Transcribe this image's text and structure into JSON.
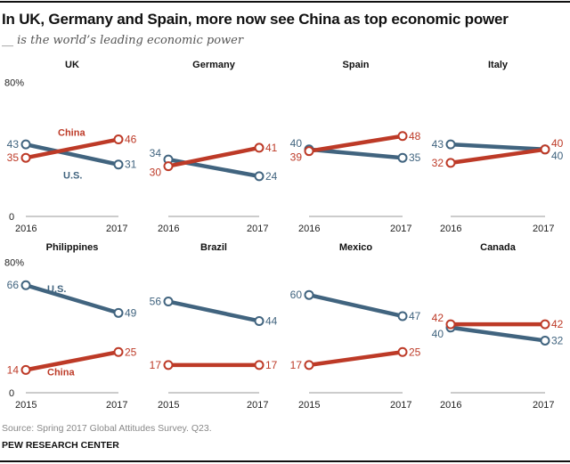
{
  "header": {
    "title": "In UK, Germany and Spain, more now see China as top economic power",
    "subtitle": "__ is the world’s leading economic power"
  },
  "footer": {
    "source": "Source: Spring 2017 Global Attitudes Survey. Q23.",
    "credit": "PEW RESEARCH CENTER"
  },
  "colors": {
    "us": "#41647f",
    "china": "#bd3a27",
    "baseline": "#999999"
  },
  "chart_data": {
    "type": "line",
    "title": "In UK, Germany and Spain, more now see China as top economic power",
    "subtitle": "__ is the world’s leading economic power",
    "ylim": [
      0,
      80
    ],
    "y_tick_labels": [
      "0",
      "80%"
    ],
    "grid": false,
    "series_names": [
      "U.S.",
      "China"
    ],
    "panels": [
      {
        "country": "UK",
        "x": [
          "2016",
          "2017"
        ],
        "series": [
          {
            "name": "U.S.",
            "values": [
              43,
              31
            ]
          },
          {
            "name": "China",
            "values": [
              35,
              46
            ]
          }
        ],
        "show_y_axis": true,
        "show_series_labels": true
      },
      {
        "country": "Germany",
        "x": [
          "2016",
          "2017"
        ],
        "series": [
          {
            "name": "U.S.",
            "values": [
              34,
              24
            ]
          },
          {
            "name": "China",
            "values": [
              30,
              41
            ]
          }
        ]
      },
      {
        "country": "Spain",
        "x": [
          "2016",
          "2017"
        ],
        "series": [
          {
            "name": "U.S.",
            "values": [
              40,
              35
            ]
          },
          {
            "name": "China",
            "values": [
              39,
              48
            ]
          }
        ]
      },
      {
        "country": "Italy",
        "x": [
          "2016",
          "2017"
        ],
        "series": [
          {
            "name": "U.S.",
            "values": [
              43,
              40
            ]
          },
          {
            "name": "China",
            "values": [
              32,
              40
            ]
          }
        ]
      },
      {
        "country": "Philippines",
        "x": [
          "2015",
          "2017"
        ],
        "series": [
          {
            "name": "U.S.",
            "values": [
              66,
              49
            ]
          },
          {
            "name": "China",
            "values": [
              14,
              25
            ]
          }
        ],
        "show_y_axis": true,
        "show_series_labels": true
      },
      {
        "country": "Brazil",
        "x": [
          "2015",
          "2017"
        ],
        "series": [
          {
            "name": "U.S.",
            "values": [
              56,
              44
            ]
          },
          {
            "name": "China",
            "values": [
              17,
              17
            ]
          }
        ]
      },
      {
        "country": "Mexico",
        "x": [
          "2015",
          "2017"
        ],
        "series": [
          {
            "name": "U.S.",
            "values": [
              60,
              47
            ]
          },
          {
            "name": "China",
            "values": [
              17,
              25
            ]
          }
        ]
      },
      {
        "country": "Canada",
        "x": [
          "2016",
          "2017"
        ],
        "series": [
          {
            "name": "U.S.",
            "values": [
              40,
              32
            ]
          },
          {
            "name": "China",
            "values": [
              42,
              42
            ]
          }
        ]
      }
    ]
  }
}
